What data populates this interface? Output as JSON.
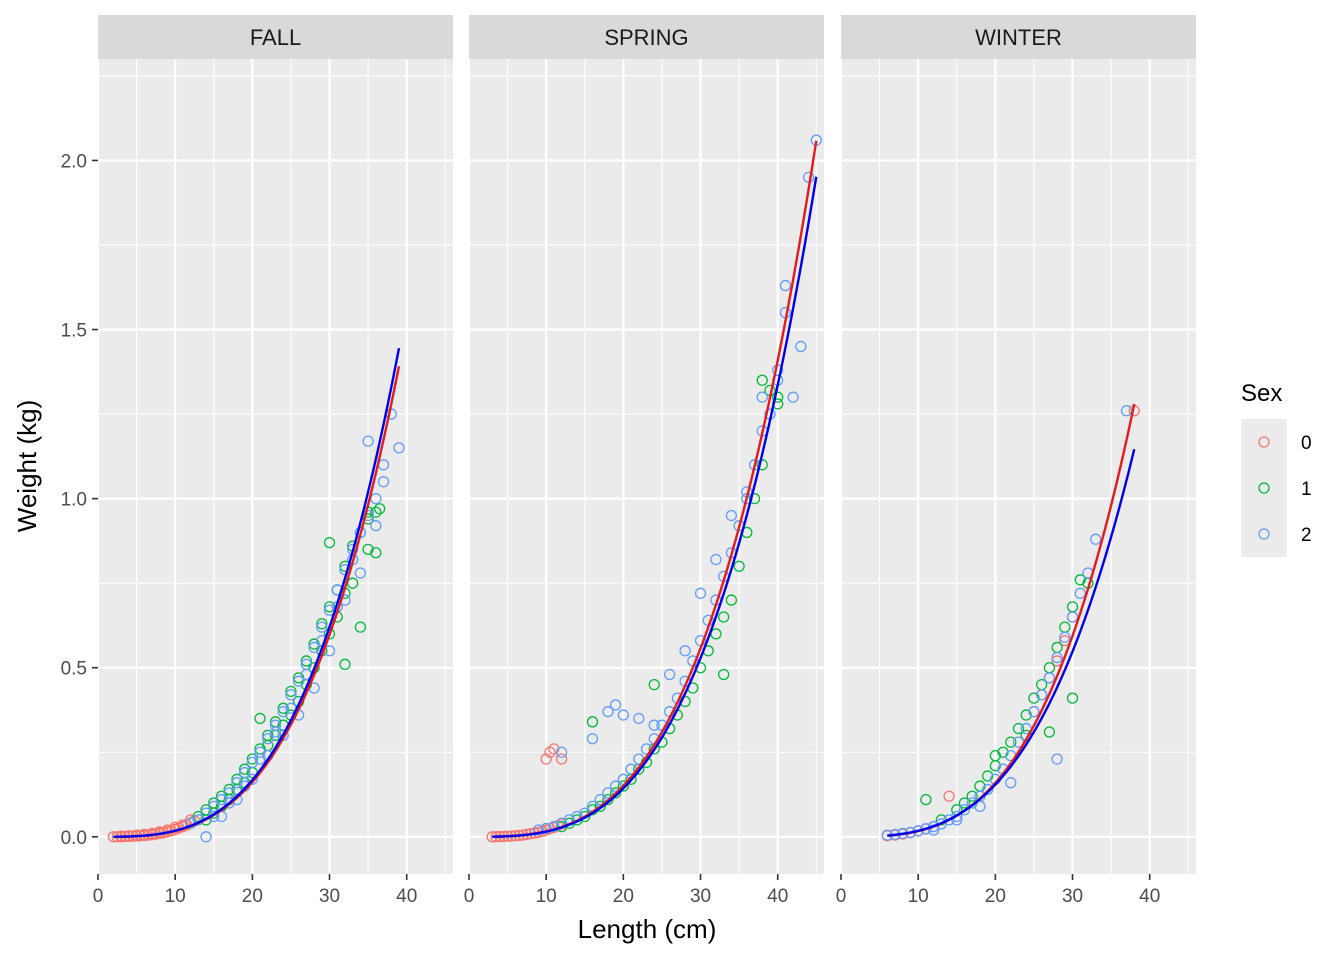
{
  "chart_data": {
    "type": "scatter",
    "xlabel": "Length (cm)",
    "ylabel": "Weight (kg)",
    "xlim": [
      0,
      46
    ],
    "ylim": [
      -0.11,
      2.3
    ],
    "x_ticks": [
      0,
      10,
      20,
      30,
      40
    ],
    "y_ticks": [
      0.0,
      0.5,
      1.0,
      1.5,
      2.0
    ],
    "x_tick_labels": [
      "0",
      "10",
      "20",
      "30",
      "40"
    ],
    "y_tick_labels": [
      "0.0",
      "0.5",
      "1.0",
      "1.5",
      "2.0"
    ],
    "grid": true,
    "legend": {
      "title": "Sex",
      "position": "right",
      "entries": [
        {
          "label": "0",
          "color": "#F8766D"
        },
        {
          "label": "1",
          "color": "#00BA38"
        },
        {
          "label": "2",
          "color": "#619CFF"
        }
      ]
    },
    "colors": {
      "0": "#F8766D",
      "1": "#00BA38",
      "2": "#619CFF"
    },
    "fit_colors": {
      "0": "#E41A1C",
      "2": "#0000EE"
    },
    "panels": [
      {
        "strip": "FALL",
        "fits": [
          {
            "sex": "0",
            "x_range": [
              2,
              39
            ],
            "a": 1.04e-05,
            "b": 3.222
          },
          {
            "sex": "2",
            "x_range": [
              2,
              39
            ],
            "a": 1.08e-05,
            "b": 3.222
          }
        ],
        "points": [
          {
            "sex": "0",
            "x": [
              2,
              2.5,
              3,
              3.5,
              4,
              4.5,
              5,
              5.5,
              6,
              6.5,
              7,
              7.5,
              8,
              8.5,
              9,
              9.5,
              10,
              10.5,
              11,
              11.5,
              12,
              12.5,
              3,
              4,
              5,
              6,
              7,
              8,
              9,
              10,
              11,
              12
            ],
            "y": [
              0.0,
              0.0,
              0.0,
              0.001,
              0.001,
              0.002,
              0.002,
              0.003,
              0.004,
              0.005,
              0.006,
              0.008,
              0.01,
              0.012,
              0.015,
              0.018,
              0.022,
              0.026,
              0.03,
              0.035,
              0.041,
              0.047,
              0.002,
              0.003,
              0.005,
              0.007,
              0.01,
              0.015,
              0.02,
              0.028,
              0.035,
              0.05
            ]
          },
          {
            "sex": "1",
            "x": [
              13,
              14,
              15,
              16,
              17,
              18,
              19,
              20,
              21,
              22,
              23,
              24,
              25,
              26,
              27,
              28,
              29,
              30,
              31,
              32,
              33,
              34,
              35,
              36,
              36.5,
              14,
              16,
              18,
              20,
              22,
              24,
              26,
              28,
              30,
              32,
              34,
              36,
              15,
              17,
              19,
              21,
              23,
              25,
              27,
              29,
              31,
              33,
              35,
              30,
              32,
              35
            ],
            "y": [
              0.06,
              0.08,
              0.1,
              0.12,
              0.14,
              0.17,
              0.2,
              0.23,
              0.26,
              0.3,
              0.34,
              0.38,
              0.43,
              0.47,
              0.52,
              0.57,
              0.63,
              0.68,
              0.73,
              0.8,
              0.86,
              0.9,
              0.94,
              0.96,
              0.97,
              0.05,
              0.09,
              0.14,
              0.19,
              0.27,
              0.33,
              0.4,
              0.5,
              0.6,
              0.72,
              0.62,
              0.84,
              0.07,
              0.11,
              0.16,
              0.35,
              0.3,
              0.36,
              0.45,
              0.55,
              0.65,
              0.75,
              0.85,
              0.87,
              0.51,
              0.96
            ]
          },
          {
            "sex": "2",
            "x": [
              12,
              13,
              14,
              15,
              16,
              17,
              18,
              19,
              20,
              21,
              22,
              23,
              24,
              25,
              26,
              27,
              28,
              29,
              30,
              31,
              32,
              33,
              34,
              35,
              36,
              37,
              38,
              39,
              14,
              16,
              18,
              20,
              22,
              24,
              26,
              28,
              30,
              32,
              34,
              36,
              35,
              37,
              33,
              31,
              29,
              27,
              25,
              23,
              21,
              19,
              17,
              15
            ],
            "y": [
              0.04,
              0.05,
              0.07,
              0.09,
              0.11,
              0.13,
              0.16,
              0.19,
              0.22,
              0.25,
              0.29,
              0.33,
              0.37,
              0.42,
              0.46,
              0.51,
              0.56,
              0.62,
              0.67,
              0.73,
              0.79,
              0.85,
              0.9,
              0.95,
              1.0,
              1.1,
              1.25,
              1.15,
              0.0,
              0.06,
              0.11,
              0.17,
              0.24,
              0.3,
              0.36,
              0.44,
              0.55,
              0.7,
              0.78,
              0.92,
              1.17,
              1.05,
              0.82,
              0.68,
              0.58,
              0.48,
              0.38,
              0.31,
              0.23,
              0.15,
              0.1,
              0.06
            ]
          }
        ]
      },
      {
        "strip": "SPRING",
        "fits": [
          {
            "sex": "0",
            "x_range": [
              3,
              45
            ],
            "a": 9.7e-06,
            "b": 3.222
          },
          {
            "sex": "2",
            "x_range": [
              3,
              45
            ],
            "a": 9.2e-06,
            "b": 3.222
          }
        ],
        "points": [
          {
            "sex": "0",
            "x": [
              3,
              3.5,
              4,
              4.5,
              5,
              5.5,
              6,
              6.5,
              7,
              7.5,
              8,
              8.5,
              9,
              9.5,
              10,
              10.5,
              11,
              11.5,
              12,
              10,
              11,
              12,
              10.5
            ],
            "y": [
              0.0,
              0.0,
              0.001,
              0.001,
              0.002,
              0.002,
              0.003,
              0.004,
              0.005,
              0.007,
              0.009,
              0.011,
              0.013,
              0.016,
              0.02,
              0.024,
              0.028,
              0.033,
              0.038,
              0.23,
              0.26,
              0.23,
              0.25
            ]
          },
          {
            "sex": "1",
            "x": [
              12,
              14,
              16,
              18,
              20,
              22,
              24,
              26,
              28,
              30,
              32,
              34,
              36,
              38,
              40,
              13,
              15,
              17,
              19,
              21,
              23,
              25,
              27,
              29,
              31,
              33,
              35,
              37,
              16,
              24,
              33,
              38,
              39,
              40
            ],
            "y": [
              0.03,
              0.05,
              0.08,
              0.11,
              0.15,
              0.2,
              0.26,
              0.32,
              0.4,
              0.5,
              0.6,
              0.7,
              0.9,
              1.1,
              1.3,
              0.04,
              0.06,
              0.09,
              0.13,
              0.17,
              0.22,
              0.28,
              0.36,
              0.44,
              0.55,
              0.65,
              0.8,
              1.0,
              0.34,
              0.45,
              0.48,
              1.35,
              1.32,
              1.28
            ]
          },
          {
            "sex": "2",
            "x": [
              9,
              10,
              11,
              12,
              13,
              14,
              15,
              16,
              17,
              18,
              19,
              20,
              21,
              22,
              23,
              24,
              25,
              26,
              27,
              28,
              29,
              30,
              31,
              32,
              33,
              34,
              35,
              36,
              37,
              38,
              39,
              40,
              41,
              42,
              43,
              44,
              45,
              12,
              16,
              18,
              19,
              20,
              22,
              24,
              26,
              28,
              30,
              32,
              34,
              36,
              38,
              40,
              41
            ],
            "y": [
              0.02,
              0.025,
              0.03,
              0.04,
              0.05,
              0.06,
              0.07,
              0.09,
              0.11,
              0.13,
              0.15,
              0.17,
              0.2,
              0.23,
              0.26,
              0.29,
              0.33,
              0.37,
              0.41,
              0.46,
              0.52,
              0.58,
              0.64,
              0.7,
              0.77,
              0.84,
              0.92,
              1.0,
              1.1,
              1.2,
              1.25,
              1.38,
              1.55,
              1.3,
              1.45,
              1.95,
              2.06,
              0.25,
              0.29,
              0.37,
              0.39,
              0.36,
              0.35,
              0.33,
              0.48,
              0.55,
              0.72,
              0.82,
              0.95,
              1.02,
              1.3,
              1.35,
              1.63
            ]
          }
        ]
      },
      {
        "strip": "WINTER",
        "fits": [
          {
            "sex": "0",
            "x_range": [
              6,
              38
            ],
            "a": 9.6e-06,
            "b": 3.244
          },
          {
            "sex": "2",
            "x_range": [
              6,
              38
            ],
            "a": 1.34e-05,
            "b": 3.122
          }
        ],
        "points": [
          {
            "sex": "0",
            "x": [
              6,
              7,
              8,
              9,
              10,
              11,
              12,
              14,
              25,
              26,
              27,
              28,
              29,
              30,
              38
            ],
            "y": [
              0.003,
              0.005,
              0.008,
              0.012,
              0.017,
              0.023,
              0.03,
              0.12,
              0.37,
              0.42,
              0.47,
              0.52,
              0.58,
              0.65,
              1.26
            ]
          },
          {
            "sex": "1",
            "x": [
              11,
              13,
              15,
              16,
              17,
              18,
              19,
              20,
              21,
              22,
              23,
              24,
              25,
              26,
              27,
              28,
              29,
              30,
              31,
              32,
              20,
              24,
              27,
              30
            ],
            "y": [
              0.11,
              0.05,
              0.08,
              0.1,
              0.12,
              0.15,
              0.18,
              0.21,
              0.25,
              0.28,
              0.32,
              0.36,
              0.41,
              0.45,
              0.5,
              0.56,
              0.62,
              0.41,
              0.76,
              0.75,
              0.24,
              0.3,
              0.31,
              0.68
            ]
          },
          {
            "sex": "2",
            "x": [
              6,
              7,
              8,
              9,
              10,
              11,
              12,
              13,
              14,
              15,
              16,
              17,
              18,
              19,
              20,
              21,
              22,
              23,
              24,
              25,
              26,
              27,
              28,
              29,
              30,
              31,
              32,
              33,
              37,
              28,
              22,
              18,
              15,
              12
            ],
            "y": [
              0.005,
              0.007,
              0.01,
              0.013,
              0.018,
              0.024,
              0.03,
              0.038,
              0.05,
              0.06,
              0.08,
              0.1,
              0.12,
              0.14,
              0.17,
              0.2,
              0.24,
              0.28,
              0.32,
              0.37,
              0.42,
              0.47,
              0.53,
              0.59,
              0.65,
              0.72,
              0.78,
              0.88,
              1.26,
              0.23,
              0.16,
              0.09,
              0.05,
              0.02
            ]
          }
        ]
      }
    ]
  }
}
